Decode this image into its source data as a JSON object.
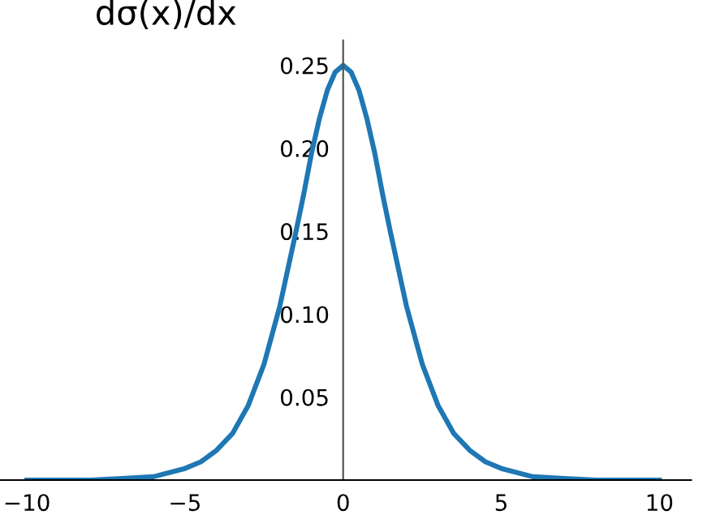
{
  "chart_data": {
    "type": "line",
    "ylabel": "dσ(x)/dx",
    "x": [
      -10,
      -8,
      -7,
      -6,
      -5,
      -4.5,
      -4,
      -3.5,
      -3,
      -2.5,
      -2,
      -1.75,
      -1.5,
      -1.25,
      -1,
      -0.75,
      -0.5,
      -0.25,
      0,
      0.25,
      0.5,
      0.75,
      1,
      1.25,
      1.5,
      1.75,
      2,
      2.5,
      3,
      3.5,
      4,
      4.5,
      5,
      6,
      7,
      8,
      10
    ],
    "series": [
      {
        "color": "#1f77b4",
        "values": [
          0.0,
          0.0,
          0.001,
          0.002,
          0.007,
          0.011,
          0.018,
          0.028,
          0.045,
          0.07,
          0.105,
          0.127,
          0.149,
          0.172,
          0.197,
          0.218,
          0.235,
          0.246,
          0.25,
          0.246,
          0.235,
          0.218,
          0.197,
          0.172,
          0.149,
          0.127,
          0.105,
          0.07,
          0.045,
          0.028,
          0.018,
          0.011,
          0.007,
          0.002,
          0.001,
          0.0,
          0.0
        ]
      }
    ],
    "xlim": [
      -10.85,
      11.0
    ],
    "ylim": [
      0,
      0.265
    ],
    "xticks": [
      {
        "value": -10,
        "label": "−10"
      },
      {
        "value": -5,
        "label": "−5"
      },
      0,
      5,
      10
    ],
    "yticks": [
      0.05,
      {
        "value": 0.1,
        "label": "0.10"
      },
      0.15,
      {
        "value": 0.2,
        "label": "0.20"
      },
      0.25
    ],
    "grid": false,
    "legend": false,
    "marker": "none",
    "line_style": "solid"
  }
}
